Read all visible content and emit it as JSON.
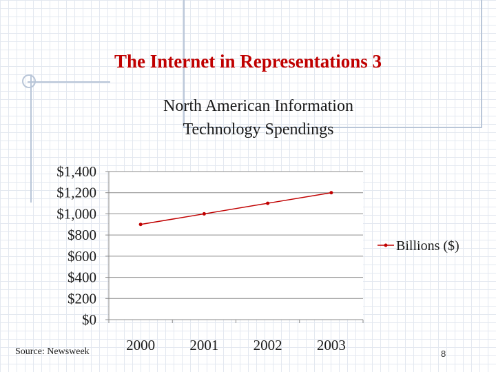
{
  "slide": {
    "title": "The Internet in Representations 3",
    "source": "Source: Newsweek",
    "page_number": "8"
  },
  "colors": {
    "title": "#c00000",
    "series": "#c00000",
    "grid": "#8a8a8a",
    "decoration": "#b9c6d8"
  },
  "chart_data": {
    "type": "line",
    "title_lines": [
      "North American Information",
      "Technology Spendings"
    ],
    "x": [
      "2000",
      "2001",
      "2002",
      "2003"
    ],
    "series": [
      {
        "name": "Billions ($)",
        "values": [
          900,
          1000,
          1100,
          1200
        ]
      }
    ],
    "ylim": [
      0,
      1400
    ],
    "y_ticks": [
      0,
      200,
      400,
      600,
      800,
      1000,
      1200,
      1400
    ],
    "y_tick_labels": [
      "$0",
      "$200",
      "$400",
      "$600",
      "$800",
      "$1,000",
      "$1,200",
      "$1,400"
    ],
    "grid": true,
    "legend_position": "right"
  }
}
